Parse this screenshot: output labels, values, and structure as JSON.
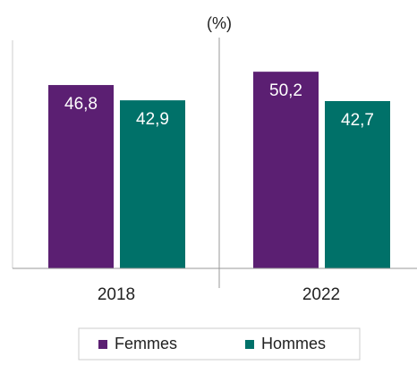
{
  "chart_data": {
    "type": "bar",
    "y_label": "(%)",
    "categories": [
      "2018",
      "2022"
    ],
    "series": [
      {
        "name": "Femmes",
        "color": "#5b1f72",
        "values": [
          46.8,
          50.2
        ],
        "value_labels": [
          "46,8",
          "50,2"
        ]
      },
      {
        "name": "Hommes",
        "color": "#007169",
        "values": [
          42.9,
          42.7
        ],
        "value_labels": [
          "42,9",
          "42,7"
        ]
      }
    ],
    "ylim": [
      0,
      58
    ]
  }
}
